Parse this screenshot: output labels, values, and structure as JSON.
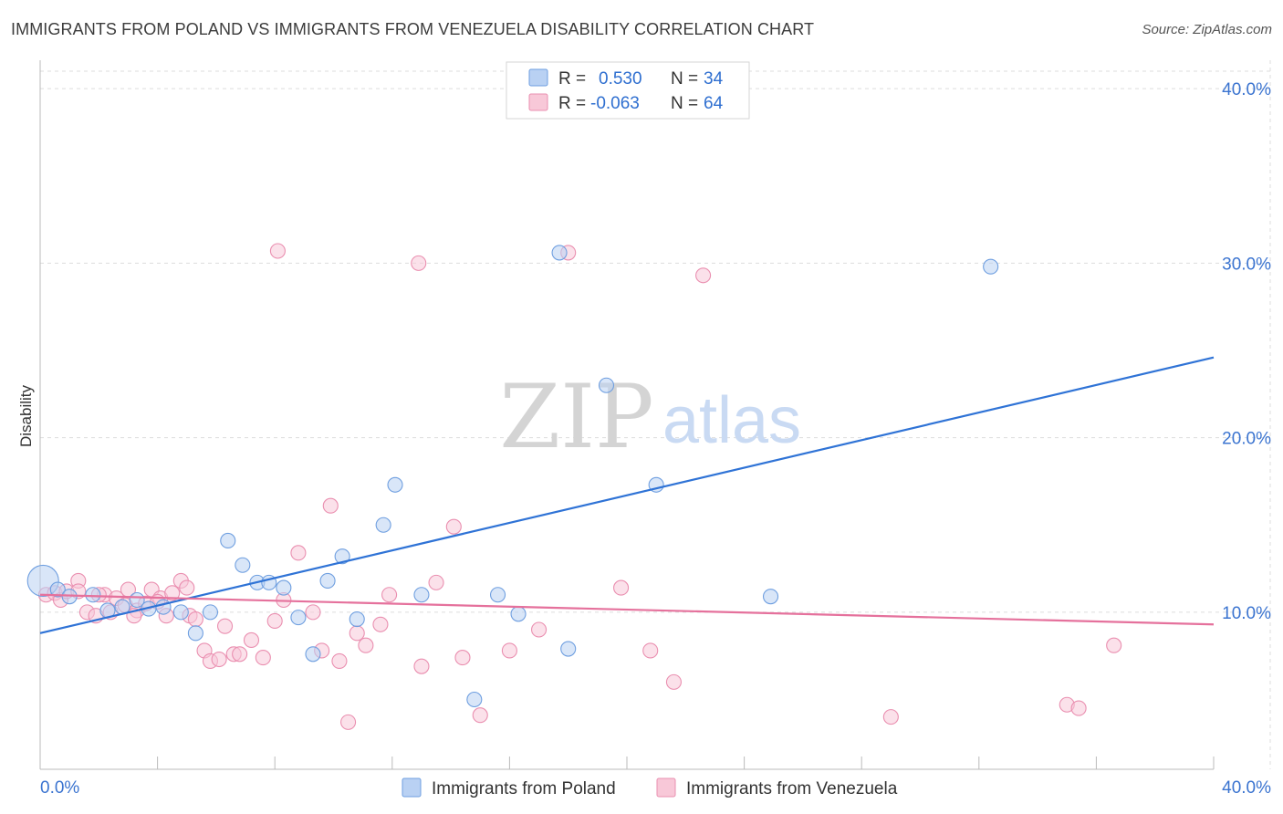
{
  "header": {
    "title": "IMMIGRANTS FROM POLAND VS IMMIGRANTS FROM VENEZUELA DISABILITY CORRELATION CHART",
    "source": "Source: ZipAtlas.com"
  },
  "colors": {
    "poland": "#6f9fe0",
    "poland_fill": "#b9d1f3",
    "poland_line": "#2f73d6",
    "venezuela": "#ea8fb0",
    "venezuela_fill": "#f8c8d8",
    "venezuela_line": "#e5719c",
    "axis_text": "#3b74d0",
    "grid": "#dddddd"
  },
  "legend": {
    "rows": [
      {
        "r_label": "R =",
        "r_value": "0.530",
        "n_label": "N =",
        "n_value": "34"
      },
      {
        "r_label": "R =",
        "r_value": "-0.063",
        "n_label": "N =",
        "n_value": "64"
      }
    ]
  },
  "watermark": {
    "zip": "ZIP",
    "atlas": "atlas"
  },
  "chart_data": {
    "type": "scatter",
    "title": "IMMIGRANTS FROM POLAND VS IMMIGRANTS FROM VENEZUELA DISABILITY CORRELATION CHART",
    "ylabel": "Disability",
    "xlabel": "",
    "xlim": [
      0,
      40
    ],
    "ylim": [
      1.0,
      41.0
    ],
    "x_tick_labels": [
      "0.0%",
      "40.0%"
    ],
    "y_ticks": [
      10,
      20,
      30,
      40
    ],
    "y_tick_labels": [
      "10.0%",
      "20.0%",
      "30.0%",
      "40.0%"
    ],
    "grid": true,
    "legend_position": "top-center",
    "series": [
      {
        "name": "Immigrants from Poland",
        "points": [
          [
            0.1,
            11.8
          ],
          [
            0.6,
            11.3
          ],
          [
            1.0,
            10.9
          ],
          [
            1.8,
            11.0
          ],
          [
            2.3,
            10.1
          ],
          [
            2.8,
            10.3
          ],
          [
            3.3,
            10.7
          ],
          [
            3.7,
            10.2
          ],
          [
            4.2,
            10.3
          ],
          [
            4.8,
            10.0
          ],
          [
            5.3,
            8.8
          ],
          [
            5.8,
            10.0
          ],
          [
            6.4,
            14.1
          ],
          [
            6.9,
            12.7
          ],
          [
            7.4,
            11.7
          ],
          [
            7.8,
            11.7
          ],
          [
            8.3,
            11.4
          ],
          [
            8.8,
            9.7
          ],
          [
            9.3,
            7.6
          ],
          [
            9.8,
            11.8
          ],
          [
            10.3,
            13.2
          ],
          [
            10.8,
            9.6
          ],
          [
            11.7,
            15.0
          ],
          [
            12.1,
            17.3
          ],
          [
            13.0,
            11.0
          ],
          [
            14.8,
            5.0
          ],
          [
            15.6,
            11.0
          ],
          [
            16.3,
            9.9
          ],
          [
            17.7,
            30.6
          ],
          [
            18.0,
            7.9
          ],
          [
            19.3,
            23.0
          ],
          [
            21.0,
            17.3
          ],
          [
            24.9,
            10.9
          ],
          [
            32.4,
            29.8
          ]
        ]
      },
      {
        "name": "Immigrants from Venezuela",
        "points": [
          [
            0.2,
            11.0
          ],
          [
            0.5,
            11.1
          ],
          [
            0.7,
            10.7
          ],
          [
            0.9,
            11.2
          ],
          [
            1.3,
            11.8
          ],
          [
            1.6,
            10.0
          ],
          [
            1.9,
            9.8
          ],
          [
            2.2,
            11.0
          ],
          [
            2.4,
            10.0
          ],
          [
            2.6,
            10.8
          ],
          [
            2.9,
            10.4
          ],
          [
            3.0,
            11.3
          ],
          [
            3.3,
            10.1
          ],
          [
            3.6,
            10.5
          ],
          [
            3.8,
            11.3
          ],
          [
            4.1,
            10.8
          ],
          [
            4.3,
            9.8
          ],
          [
            4.5,
            11.1
          ],
          [
            4.8,
            11.8
          ],
          [
            5.1,
            9.8
          ],
          [
            5.3,
            9.6
          ],
          [
            5.6,
            7.8
          ],
          [
            5.8,
            7.2
          ],
          [
            6.1,
            7.3
          ],
          [
            6.3,
            9.2
          ],
          [
            6.6,
            7.6
          ],
          [
            7.2,
            8.4
          ],
          [
            7.6,
            7.4
          ],
          [
            8.0,
            9.5
          ],
          [
            8.3,
            10.7
          ],
          [
            8.8,
            13.4
          ],
          [
            9.3,
            10.0
          ],
          [
            9.6,
            7.8
          ],
          [
            9.9,
            16.1
          ],
          [
            10.2,
            7.2
          ],
          [
            10.5,
            3.7
          ],
          [
            10.8,
            8.8
          ],
          [
            11.1,
            8.1
          ],
          [
            11.6,
            9.3
          ],
          [
            12.9,
            30.0
          ],
          [
            13.0,
            6.9
          ],
          [
            14.1,
            14.9
          ],
          [
            14.4,
            7.4
          ],
          [
            15.0,
            4.1
          ],
          [
            16.0,
            7.8
          ],
          [
            18.0,
            30.6
          ],
          [
            20.8,
            7.8
          ],
          [
            21.6,
            6.0
          ],
          [
            22.6,
            29.3
          ],
          [
            29.0,
            4.0
          ],
          [
            35.0,
            4.7
          ],
          [
            35.4,
            4.5
          ],
          [
            36.6,
            8.1
          ],
          [
            1.3,
            11.2
          ],
          [
            2.0,
            11.0
          ],
          [
            3.2,
            9.8
          ],
          [
            4.0,
            10.6
          ],
          [
            5.0,
            11.4
          ],
          [
            6.8,
            7.6
          ],
          [
            8.1,
            30.7
          ],
          [
            11.9,
            11.0
          ],
          [
            13.5,
            11.7
          ],
          [
            17.0,
            9.0
          ],
          [
            19.8,
            11.4
          ]
        ]
      }
    ],
    "trend_lines": [
      {
        "name": "Immigrants from Poland",
        "x": [
          0,
          40
        ],
        "y": [
          8.8,
          24.6
        ]
      },
      {
        "name": "Immigrants from Venezuela",
        "x": [
          0,
          40
        ],
        "y": [
          11.0,
          9.3
        ]
      }
    ]
  }
}
